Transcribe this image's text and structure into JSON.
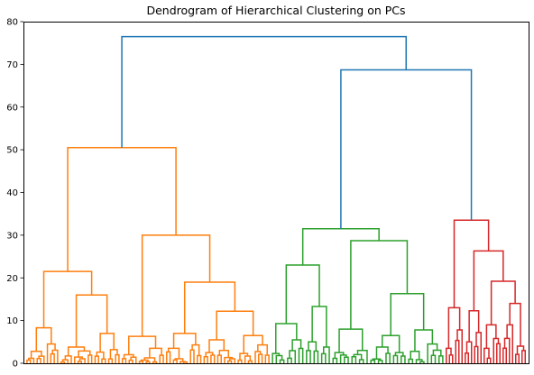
{
  "chart_data": {
    "type": "dendrogram",
    "title": "Dendrogram of Hierarchical Clustering on PCs",
    "xlabel": "",
    "ylabel": "",
    "ylim": [
      0,
      80
    ],
    "yticks": [
      0,
      10,
      20,
      30,
      40,
      50,
      60,
      70,
      80
    ],
    "xticks": [],
    "grid": false,
    "legend": "none",
    "colors": {
      "link": "#1f77b4",
      "cluster1": "#ff7f0e",
      "cluster2": "#2ca02c",
      "cluster3": "#d62728"
    },
    "top_merges": [
      {
        "height": 76.5,
        "children": [
          "cluster1",
          "B"
        ]
      },
      {
        "name": "B",
        "height": 68.7,
        "children": [
          "cluster2",
          "cluster3"
        ]
      }
    ],
    "clusters": [
      {
        "name": "cluster1",
        "color": "#ff7f0e",
        "root_height": 50.5,
        "sub_merges": [
          21.5,
          16.0,
          30.0,
          19.0,
          12.2,
          8.3,
          7.0,
          6.3,
          6.5
        ]
      },
      {
        "name": "cluster2",
        "color": "#2ca02c",
        "root_height": 31.5,
        "sub_merges": [
          28.7,
          23.0,
          16.3,
          13.3,
          9.3,
          8.0,
          7.8,
          6.5
        ]
      },
      {
        "name": "cluster3",
        "color": "#d62728",
        "root_height": 33.5,
        "sub_merges": [
          26.3,
          19.2,
          14.0,
          12.8,
          12.3,
          9.0
        ]
      }
    ]
  }
}
